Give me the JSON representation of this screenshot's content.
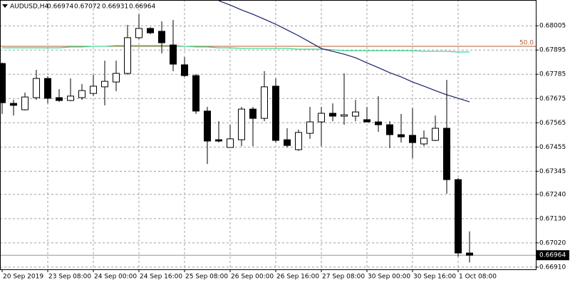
{
  "chart_data": {
    "type": "candlestick",
    "symbol": "AUDUSD,H4",
    "categories": [
      "20 Sep 2019",
      null,
      null,
      null,
      "23 Sep 08:00",
      null,
      null,
      null,
      "24 Sep 00:00",
      null,
      null,
      null,
      "24 Sep 16:00",
      null,
      null,
      null,
      "25 Sep 08:00",
      null,
      null,
      null,
      "26 Sep 00:00",
      null,
      null,
      null,
      "26 Sep 16:00",
      null,
      null,
      null,
      "27 Sep 08:00",
      null,
      null,
      null,
      "30 Sep 00:00",
      null,
      null,
      null,
      "30 Sep 16:00",
      null,
      null,
      null,
      "1 Oct 08:00",
      null
    ],
    "open": [
      0.67834,
      0.67653,
      0.67624,
      0.67679,
      0.67766,
      0.67679,
      0.67666,
      0.67679,
      0.67698,
      0.67728,
      0.6775,
      0.67789,
      0.67951,
      0.67993,
      0.6798,
      0.67918,
      0.67828,
      0.67779,
      0.67618,
      0.67488,
      0.67453,
      0.67488,
      0.67627,
      0.67585,
      0.67731,
      0.67488,
      0.67443,
      0.67517,
      0.67569,
      0.67608,
      0.67595,
      0.67595,
      0.67579,
      0.67569,
      0.67556,
      0.67511,
      0.67508,
      0.67469,
      0.67485,
      0.6754,
      0.67307,
      0.66974
    ],
    "high": [
      0.67838,
      0.67669,
      0.67702,
      0.67805,
      0.67776,
      0.67718,
      0.67766,
      0.67741,
      0.67783,
      0.67847,
      0.67847,
      0.68009,
      0.68057,
      0.67999,
      0.68025,
      0.68031,
      0.67863,
      0.67786,
      0.67637,
      0.67572,
      0.67556,
      0.67637,
      0.67637,
      0.67799,
      0.67766,
      0.6754,
      0.67534,
      0.67637,
      0.67637,
      0.67653,
      0.67789,
      0.67669,
      0.67637,
      0.67686,
      0.67572,
      0.67605,
      0.67631,
      0.6753,
      0.67598,
      0.6776,
      0.67314,
      0.67072
    ],
    "low": [
      0.67605,
      0.67598,
      0.67621,
      0.67669,
      0.67653,
      0.6766,
      0.67663,
      0.67669,
      0.67686,
      0.67644,
      0.67708,
      0.67783,
      0.67944,
      0.67967,
      0.6788,
      0.67799,
      0.67773,
      0.67605,
      0.67378,
      0.67475,
      0.67453,
      0.67459,
      0.67459,
      0.67572,
      0.67475,
      0.67453,
      0.67437,
      0.67492,
      0.67459,
      0.67572,
      0.67556,
      0.67572,
      0.67566,
      0.67524,
      0.6745,
      0.67475,
      0.67404,
      0.67459,
      0.67482,
      0.67243,
      0.66958,
      0.66931
    ],
    "close": [
      0.67656,
      0.67644,
      0.67682,
      0.67766,
      0.67676,
      0.67666,
      0.67686,
      0.67711,
      0.67731,
      0.67753,
      0.67789,
      0.67951,
      0.67993,
      0.67973,
      0.67928,
      0.67831,
      0.67779,
      0.67618,
      0.67482,
      0.67482,
      0.67492,
      0.67627,
      0.67585,
      0.67728,
      0.67485,
      0.67462,
      0.67521,
      0.67569,
      0.67608,
      0.67595,
      0.67601,
      0.67614,
      0.67569,
      0.67556,
      0.67511,
      0.67501,
      0.67475,
      0.67495,
      0.6754,
      0.67307,
      0.66974,
      0.66964
    ],
    "overlays": [
      {
        "color": "#33d68a",
        "values": [
          0.67905,
          0.67905,
          0.67905,
          0.67905,
          0.67905,
          0.67905,
          0.67909,
          0.67909,
          0.67912,
          0.67912,
          0.67915,
          0.67915,
          0.67915,
          0.67915,
          0.67915,
          0.67915,
          0.67912,
          0.67909,
          0.67909,
          0.67905,
          0.67905,
          0.67902,
          0.67902,
          0.67902,
          0.67902,
          0.67902,
          0.67899,
          0.67899,
          0.67899,
          0.67896,
          0.67892,
          0.67892,
          0.67892,
          0.67892,
          0.67892,
          0.67892,
          0.67892,
          0.67889,
          0.67889,
          0.67889,
          0.67886,
          0.67886
        ]
      },
      {
        "color": "#1a1f6e",
        "values": [
          null,
          null,
          null,
          null,
          null,
          null,
          null,
          null,
          null,
          null,
          null,
          null,
          null,
          null,
          null,
          null,
          null,
          null,
          null,
          0.68119,
          0.68099,
          0.68077,
          0.68057,
          0.68035,
          0.68012,
          0.67986,
          0.6796,
          0.67931,
          0.67902,
          0.67889,
          0.67876,
          0.6786,
          0.67837,
          0.67815,
          0.67792,
          0.67773,
          0.6775,
          0.67731,
          0.67711,
          0.67692,
          0.67676,
          0.6766
        ]
      }
    ],
    "level": {
      "label": "50.0",
      "value": 0.67912,
      "color": "#b0622e"
    },
    "bid": 0.66964,
    "ylim": [
      0.669,
      0.68122
    ],
    "yticks": [
      0.68005,
      0.67895,
      0.67785,
      0.67675,
      0.67565,
      0.67455,
      0.67345,
      {
        "value": 0.6724,
        "label": "0.67240"
      },
      {
        "value": 0.6713,
        "label": "0.67130"
      },
      {
        "value": 0.6702,
        "label": "0.67020"
      },
      {
        "value": 0.6691,
        "label": "0.66910"
      }
    ],
    "grid": true,
    "bull_color": "#ffffff",
    "bear_color": "#000000"
  }
}
